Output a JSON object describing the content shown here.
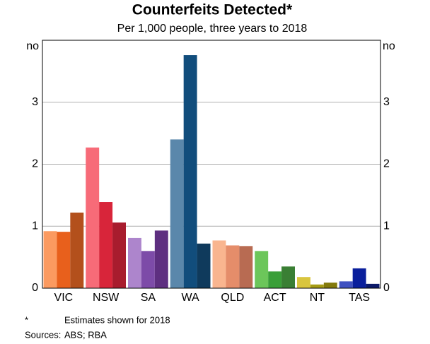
{
  "chart_data": {
    "type": "bar",
    "title": "Counterfeits Detected*",
    "subtitle": "Per 1,000 people, three years to 2018",
    "y_unit": "no",
    "categories": [
      "VIC",
      "NSW",
      "SA",
      "WA",
      "QLD",
      "ACT",
      "NT",
      "TAS"
    ],
    "series": [
      {
        "values": [
          0.92,
          2.27,
          0.81,
          2.4,
          0.77,
          0.6,
          0.18,
          0.11
        ],
        "colors": [
          "#fb9a60",
          "#f76b78",
          "#ad85cc",
          "#5a87ab",
          "#f9b58f",
          "#6cc65a",
          "#d9c53e",
          "#3f51c0"
        ]
      },
      {
        "values": [
          0.91,
          1.39,
          0.6,
          3.76,
          0.69,
          0.27,
          0.06,
          0.32
        ],
        "colors": [
          "#e8601c",
          "#d8253a",
          "#7d4ba8",
          "#114d7c",
          "#e58d6a",
          "#3a9f38",
          "#a59b14",
          "#0a1f9c"
        ]
      },
      {
        "values": [
          1.22,
          1.06,
          0.93,
          0.72,
          0.68,
          0.35,
          0.09,
          0.07
        ],
        "colors": [
          "#b3501c",
          "#a81c2e",
          "#5e2f80",
          "#0f3a5c",
          "#b86b52",
          "#3a7f34",
          "#837a0c",
          "#0c1a6a"
        ]
      }
    ],
    "ylim": [
      0,
      4
    ],
    "yticks": [
      0,
      1,
      2,
      3
    ],
    "grid": true,
    "footnote": {
      "marker": "*",
      "text": "Estimates shown for 2018"
    },
    "sources": {
      "label": "Sources:",
      "text": "ABS; RBA"
    }
  }
}
